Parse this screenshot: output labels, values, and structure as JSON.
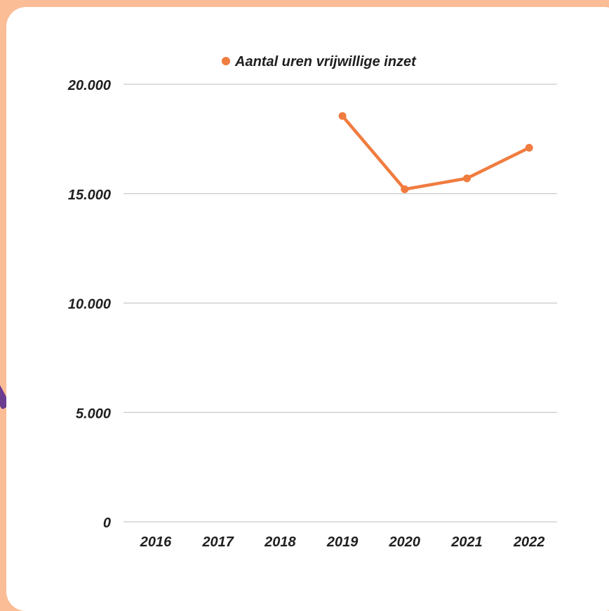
{
  "colors": {
    "background": "#fbbd96",
    "card": "#ffffff",
    "series": "#f07c3f",
    "grid": "#bdbdbd",
    "accent": "#6a3d8f"
  },
  "chart_data": {
    "type": "line",
    "title": "",
    "xlabel": "",
    "ylabel": "",
    "categories": [
      "2016",
      "2017",
      "2018",
      "2019",
      "2020",
      "2021",
      "2022"
    ],
    "series": [
      {
        "name": "Aantal uren vrijwillige inzet",
        "values": [
          null,
          null,
          null,
          18550,
          15200,
          15700,
          17100
        ]
      }
    ],
    "ylim": [
      0,
      20000
    ],
    "yticks": [
      0,
      5000,
      10000,
      15000,
      20000
    ],
    "ytick_labels": [
      "0",
      "5.000",
      "10.000",
      "15.000",
      "20.000"
    ],
    "grid": true,
    "legend_position": "top"
  }
}
